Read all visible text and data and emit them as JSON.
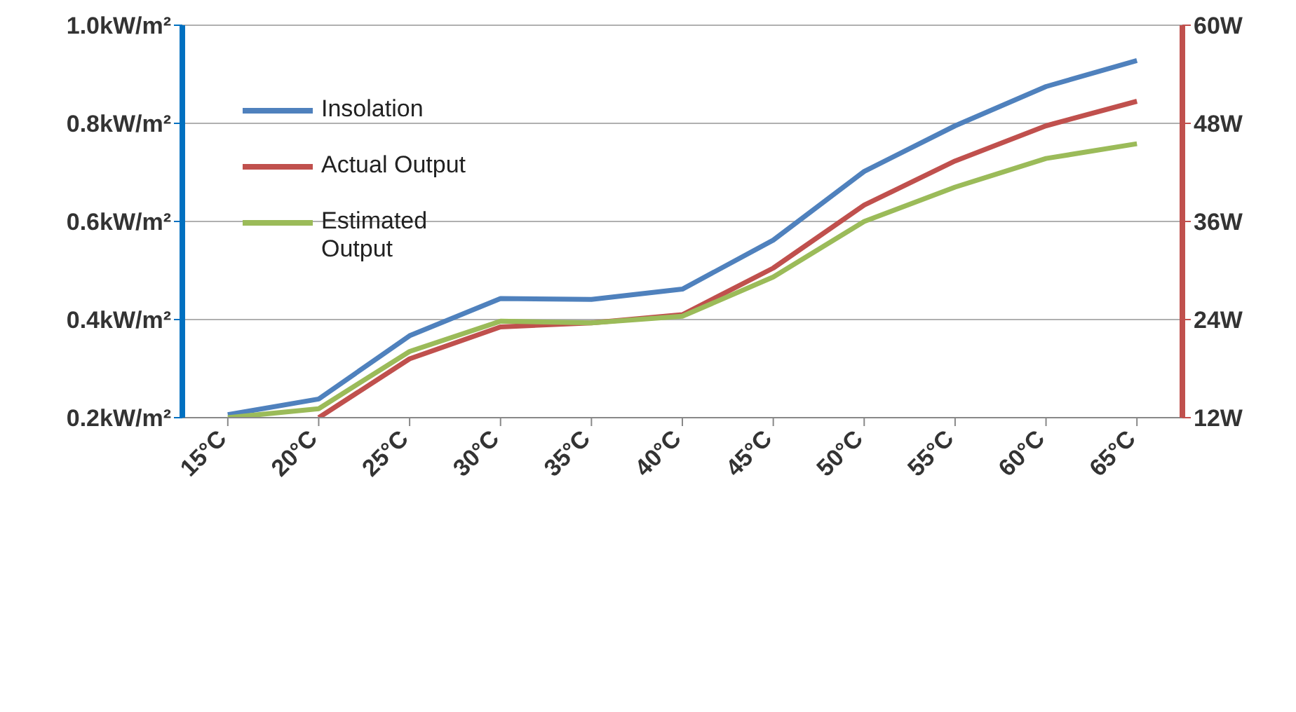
{
  "chart_data": {
    "type": "line",
    "categories": [
      "15°C",
      "20°C",
      "25°C",
      "30°C",
      "35°C",
      "40°C",
      "45°C",
      "50°C",
      "55°C",
      "60°C",
      "65°C"
    ],
    "series": [
      {
        "name": "Insolation",
        "color": "#4f81bd",
        "values": [
          0.206,
          0.238,
          0.367,
          0.443,
          0.441,
          0.462,
          0.562,
          0.702,
          0.795,
          0.875,
          0.928
        ]
      },
      {
        "name": "Actual Output",
        "color": "#c0504d",
        "axis": "y2",
        "values": [
          null,
          12,
          19.2,
          23.1,
          23.6,
          24.6,
          30.3,
          38.0,
          43.4,
          47.7,
          50.7
        ]
      },
      {
        "name": "Estimated Output",
        "color": "#9bbb59",
        "axis": "y2",
        "values": [
          12,
          13.1,
          20.1,
          23.8,
          23.6,
          24.4,
          29.2,
          36.0,
          40.2,
          43.7,
          45.5
        ]
      }
    ],
    "ylim": [
      0.2,
      1.0
    ],
    "yticks": [
      {
        "value": 0.2,
        "label": "0.2kW/m²"
      },
      {
        "value": 0.4,
        "label": "0.4kW/m²"
      },
      {
        "value": 0.6,
        "label": "0.6kW/m²"
      },
      {
        "value": 0.8,
        "label": "0.8kW/m²"
      },
      {
        "value": 1.0,
        "label": "1.0kW/m²"
      }
    ],
    "y2lim": [
      12,
      60
    ],
    "y2ticks": [
      {
        "value": 12,
        "label": "12W"
      },
      {
        "value": 24,
        "label": "24W"
      },
      {
        "value": 36,
        "label": "36W"
      },
      {
        "value": 48,
        "label": "48W"
      },
      {
        "value": 60,
        "label": "60W"
      }
    ],
    "grid": "y",
    "legend": "top left",
    "marker": "none",
    "line_style": "solid"
  }
}
